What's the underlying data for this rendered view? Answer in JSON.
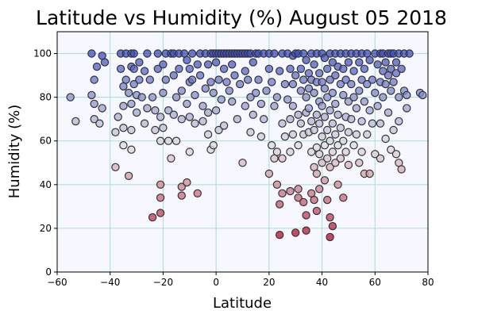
{
  "chart_data": {
    "type": "scatter",
    "title": "Latitude vs Humidity (%) August 05 2018",
    "xlabel": "Latitude",
    "ylabel": "Humidity (%)",
    "xlim": [
      -60,
      80
    ],
    "ylim": [
      0,
      110
    ],
    "xticks": [
      -60,
      -40,
      -20,
      0,
      20,
      40,
      60,
      80
    ],
    "yticks": [
      0,
      20,
      40,
      60,
      80,
      100
    ],
    "grid": true,
    "colors": {
      "plot_background": "#f7f8ff",
      "grid": "#a8ddd2",
      "marker_edge": "#333333",
      "colormap_low": "#b40426",
      "colormap_mid": "#dddddd",
      "colormap_high": "#3b4cc0"
    },
    "points": [
      [
        -55,
        80
      ],
      [
        -53,
        69
      ],
      [
        -47,
        100
      ],
      [
        -47,
        81
      ],
      [
        -46,
        88
      ],
      [
        -46,
        77
      ],
      [
        -45,
        94
      ],
      [
        -46,
        70
      ],
      [
        -44,
        68
      ],
      [
        -43,
        99
      ],
      [
        -43,
        75
      ],
      [
        -42,
        96
      ],
      [
        -38,
        64
      ],
      [
        -38,
        48
      ],
      [
        -37,
        71
      ],
      [
        -36,
        100
      ],
      [
        -36,
        93
      ],
      [
        -35,
        85
      ],
      [
        -35,
        76
      ],
      [
        -35,
        66
      ],
      [
        -35,
        58
      ],
      [
        -34,
        100
      ],
      [
        -34,
        88
      ],
      [
        -33,
        82
      ],
      [
        -33,
        44
      ],
      [
        -32,
        100
      ],
      [
        -32,
        94
      ],
      [
        -32,
        77
      ],
      [
        -32,
        65
      ],
      [
        -32,
        56
      ],
      [
        -31,
        100
      ],
      [
        -31,
        93
      ],
      [
        -31,
        86
      ],
      [
        -30,
        81
      ],
      [
        -30,
        73
      ],
      [
        -29,
        96
      ],
      [
        -29,
        88
      ],
      [
        -28,
        80
      ],
      [
        -27,
        92
      ],
      [
        -27,
        68
      ],
      [
        -26,
        100
      ],
      [
        -26,
        75
      ],
      [
        -25,
        88
      ],
      [
        -24,
        80
      ],
      [
        -24,
        25
      ],
      [
        -23,
        74
      ],
      [
        -23,
        65
      ],
      [
        -22,
        100
      ],
      [
        -22,
        93
      ],
      [
        -21,
        71
      ],
      [
        -21,
        60
      ],
      [
        -21,
        40
      ],
      [
        -21,
        34
      ],
      [
        -21,
        27
      ],
      [
        -20,
        95
      ],
      [
        -20,
        82
      ],
      [
        -20,
        66
      ],
      [
        -19,
        100
      ],
      [
        -19,
        88
      ],
      [
        -18,
        74
      ],
      [
        -18,
        60
      ],
      [
        -17,
        100
      ],
      [
        -17,
        52
      ],
      [
        -16,
        100
      ],
      [
        -16,
        90
      ],
      [
        -16,
        72
      ],
      [
        -15,
        80
      ],
      [
        -15,
        60
      ],
      [
        -14,
        100
      ],
      [
        -14,
        93
      ],
      [
        -13,
        83
      ],
      [
        -13,
        70
      ],
      [
        -13,
        39
      ],
      [
        -13,
        35
      ],
      [
        -12,
        100
      ],
      [
        -11,
        97
      ],
      [
        -11,
        77
      ],
      [
        -11,
        41
      ],
      [
        -10,
        93
      ],
      [
        -10,
        87
      ],
      [
        -10,
        71
      ],
      [
        -10,
        55
      ],
      [
        -9,
        100
      ],
      [
        -9,
        88
      ],
      [
        -8,
        81
      ],
      [
        -8,
        68
      ],
      [
        -7,
        95
      ],
      [
        -7,
        36
      ],
      [
        -6,
        100
      ],
      [
        -6,
        90
      ],
      [
        -5,
        76
      ],
      [
        -5,
        69
      ],
      [
        -4,
        100
      ],
      [
        -4,
        84
      ],
      [
        -3,
        95
      ],
      [
        -3,
        73
      ],
      [
        -3,
        63
      ],
      [
        -2,
        100
      ],
      [
        -2,
        87
      ],
      [
        -2,
        56
      ],
      [
        -1,
        100
      ],
      [
        -1,
        82
      ],
      [
        -1,
        58
      ],
      [
        0,
        100
      ],
      [
        0,
        96
      ],
      [
        0,
        74
      ],
      [
        1,
        100
      ],
      [
        1,
        88
      ],
      [
        1,
        65
      ],
      [
        2,
        100
      ],
      [
        2,
        79
      ],
      [
        3,
        100
      ],
      [
        3,
        93
      ],
      [
        3,
        67
      ],
      [
        4,
        100
      ],
      [
        4,
        87
      ],
      [
        5,
        100
      ],
      [
        5,
        83
      ],
      [
        6,
        100
      ],
      [
        6,
        95
      ],
      [
        6,
        78
      ],
      [
        7,
        100
      ],
      [
        7,
        90
      ],
      [
        8,
        100
      ],
      [
        8,
        70
      ],
      [
        9,
        100
      ],
      [
        9,
        86
      ],
      [
        10,
        100
      ],
      [
        10,
        50
      ],
      [
        11,
        100
      ],
      [
        11,
        92
      ],
      [
        11,
        76
      ],
      [
        12,
        100
      ],
      [
        12,
        88
      ],
      [
        13,
        100
      ],
      [
        13,
        80
      ],
      [
        13,
        64
      ],
      [
        14,
        96
      ],
      [
        14,
        72
      ],
      [
        15,
        100
      ],
      [
        15,
        82
      ],
      [
        16,
        100
      ],
      [
        16,
        88
      ],
      [
        17,
        77
      ],
      [
        17,
        62
      ],
      [
        18,
        100
      ],
      [
        18,
        70
      ],
      [
        19,
        83
      ],
      [
        20,
        100
      ],
      [
        20,
        93
      ],
      [
        20,
        45
      ],
      [
        21,
        87
      ],
      [
        21,
        58
      ],
      [
        22,
        100
      ],
      [
        22,
        76
      ],
      [
        22,
        52
      ],
      [
        23,
        80
      ],
      [
        23,
        55
      ],
      [
        23,
        40
      ],
      [
        24,
        92
      ],
      [
        24,
        31
      ],
      [
        24,
        17
      ],
      [
        25,
        100
      ],
      [
        25,
        68
      ],
      [
        25,
        52
      ],
      [
        25,
        36
      ],
      [
        26,
        86
      ],
      [
        26,
        62
      ],
      [
        27,
        100
      ],
      [
        27,
        79
      ],
      [
        28,
        93
      ],
      [
        28,
        70
      ],
      [
        28,
        55
      ],
      [
        28,
        37
      ],
      [
        29,
        99
      ],
      [
        29,
        86
      ],
      [
        29,
        76
      ],
      [
        29,
        63
      ],
      [
        30,
        100
      ],
      [
        30,
        90
      ],
      [
        30,
        18
      ],
      [
        31,
        100
      ],
      [
        31,
        72
      ],
      [
        31,
        58
      ],
      [
        31,
        38
      ],
      [
        31,
        34
      ],
      [
        32,
        93
      ],
      [
        32,
        83
      ],
      [
        32,
        68
      ],
      [
        33,
        100
      ],
      [
        33,
        88
      ],
      [
        33,
        63
      ],
      [
        33,
        32
      ],
      [
        34,
        97
      ],
      [
        34,
        80
      ],
      [
        34,
        73
      ],
      [
        34,
        26
      ],
      [
        34,
        19
      ],
      [
        35,
        91
      ],
      [
        35,
        84
      ],
      [
        35,
        75
      ],
      [
        35,
        64
      ],
      [
        36,
        100
      ],
      [
        36,
        88
      ],
      [
        36,
        69
      ],
      [
        36,
        55
      ],
      [
        36,
        36
      ],
      [
        37,
        95
      ],
      [
        37,
        82
      ],
      [
        37,
        65
      ],
      [
        37,
        48
      ],
      [
        37,
        33
      ],
      [
        38,
        100
      ],
      [
        38,
        87
      ],
      [
        38,
        72
      ],
      [
        38,
        57
      ],
      [
        38,
        45
      ],
      [
        38,
        28
      ],
      [
        39,
        91
      ],
      [
        39,
        78
      ],
      [
        39,
        68
      ],
      [
        39,
        54
      ],
      [
        39,
        38
      ],
      [
        40,
        100
      ],
      [
        40,
        87
      ],
      [
        40,
        76
      ],
      [
        40,
        62
      ],
      [
        40,
        50
      ],
      [
        41,
        98
      ],
      [
        41,
        84
      ],
      [
        41,
        71
      ],
      [
        41,
        58
      ],
      [
        41,
        42
      ],
      [
        42,
        93
      ],
      [
        42,
        80
      ],
      [
        42,
        65
      ],
      [
        42,
        52
      ],
      [
        42,
        33
      ],
      [
        43,
        100
      ],
      [
        43,
        88
      ],
      [
        43,
        74
      ],
      [
        43,
        60
      ],
      [
        43,
        48
      ],
      [
        43,
        25
      ],
      [
        43,
        16
      ],
      [
        44,
        96
      ],
      [
        44,
        82
      ],
      [
        44,
        68
      ],
      [
        44,
        55
      ],
      [
        44,
        21
      ],
      [
        45,
        100
      ],
      [
        45,
        90
      ],
      [
        45,
        77
      ],
      [
        45,
        63
      ],
      [
        45,
        50
      ],
      [
        46,
        94
      ],
      [
        46,
        72
      ],
      [
        46,
        58
      ],
      [
        46,
        40
      ],
      [
        47,
        100
      ],
      [
        47,
        86
      ],
      [
        47,
        66
      ],
      [
        47,
        52
      ],
      [
        48,
        93
      ],
      [
        48,
        81
      ],
      [
        48,
        60
      ],
      [
        48,
        34
      ],
      [
        49,
        100
      ],
      [
        49,
        88
      ],
      [
        49,
        71
      ],
      [
        49,
        55
      ],
      [
        50,
        96
      ],
      [
        50,
        78
      ],
      [
        50,
        64
      ],
      [
        50,
        49
      ],
      [
        51,
        100
      ],
      [
        51,
        86
      ],
      [
        51,
        70
      ],
      [
        52,
        92
      ],
      [
        52,
        80
      ],
      [
        52,
        58
      ],
      [
        53,
        100
      ],
      [
        53,
        75
      ],
      [
        53,
        63
      ],
      [
        54,
        96
      ],
      [
        54,
        83
      ],
      [
        54,
        50
      ],
      [
        55,
        100
      ],
      [
        55,
        88
      ],
      [
        55,
        69
      ],
      [
        55,
        55
      ],
      [
        56,
        93
      ],
      [
        56,
        78
      ],
      [
        56,
        45
      ],
      [
        57,
        100
      ],
      [
        57,
        86
      ],
      [
        57,
        63
      ],
      [
        58,
        97
      ],
      [
        58,
        74
      ],
      [
        58,
        45
      ],
      [
        59,
        88
      ],
      [
        59,
        68
      ],
      [
        60,
        100
      ],
      [
        60,
        82
      ],
      [
        60,
        54
      ],
      [
        61,
        95
      ],
      [
        61,
        76
      ],
      [
        62,
        100
      ],
      [
        62,
        87
      ],
      [
        62,
        68
      ],
      [
        62,
        52
      ],
      [
        63,
        100
      ],
      [
        63,
        92
      ],
      [
        63,
        80
      ],
      [
        64,
        96
      ],
      [
        64,
        86
      ],
      [
        64,
        61
      ],
      [
        65,
        100
      ],
      [
        65,
        90
      ],
      [
        65,
        73
      ],
      [
        66,
        100
      ],
      [
        66,
        93
      ],
      [
        66,
        83
      ],
      [
        66,
        56
      ],
      [
        67,
        100
      ],
      [
        67,
        87
      ],
      [
        67,
        65
      ],
      [
        68,
        96
      ],
      [
        68,
        91
      ],
      [
        68,
        54
      ],
      [
        69,
        100
      ],
      [
        69,
        80
      ],
      [
        69,
        69
      ],
      [
        69,
        50
      ],
      [
        70,
        93
      ],
      [
        70,
        47
      ],
      [
        71,
        100
      ],
      [
        71,
        83
      ],
      [
        72,
        75
      ],
      [
        72,
        81
      ],
      [
        73,
        100
      ],
      [
        77,
        82
      ],
      [
        78,
        81
      ]
    ]
  }
}
